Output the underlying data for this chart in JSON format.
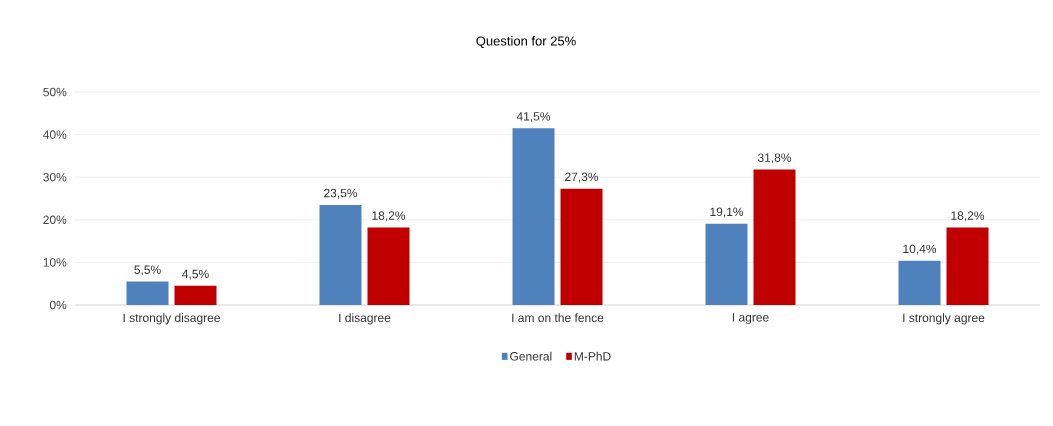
{
  "chart_data": {
    "type": "bar",
    "title": "Question for 25%",
    "categories": [
      "I strongly disagree",
      "I disagree",
      "I am on the fence",
      "I agree",
      "I strongly agree"
    ],
    "series": [
      {
        "name": "General",
        "color": "#4f81bd",
        "values": [
          5.5,
          23.5,
          41.5,
          19.1,
          10.4
        ],
        "value_labels": [
          "5,5%",
          "23,5%",
          "41,5%",
          "19,1%",
          "10,4%"
        ]
      },
      {
        "name": "M-PhD",
        "color": "#c00000",
        "values": [
          4.5,
          18.2,
          27.3,
          31.8,
          18.2
        ],
        "value_labels": [
          "4,5%",
          "18,2%",
          "27,3%",
          "31,8%",
          "18,2%"
        ]
      }
    ],
    "ylim": [
      0,
      50
    ],
    "yticks": [
      {
        "value": 0,
        "label": "0%"
      },
      {
        "value": 10,
        "label": "10%"
      },
      {
        "value": 20,
        "label": "20%"
      },
      {
        "value": 30,
        "label": "30%"
      },
      {
        "value": 40,
        "label": "40%"
      },
      {
        "value": 50,
        "label": "50%"
      }
    ],
    "grid": "y",
    "legend": "bottom"
  }
}
